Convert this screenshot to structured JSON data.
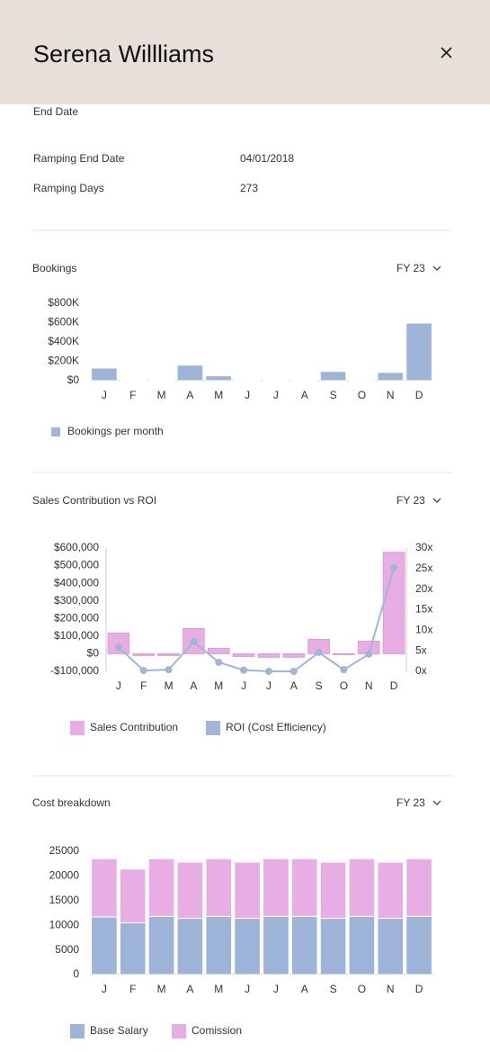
{
  "header": {
    "title": "Serena Willliams"
  },
  "fields": [
    {
      "label": "End Date"
    },
    {
      "label": "Ramping End Date",
      "value": "04/01/2018"
    },
    {
      "label": "Ramping Days",
      "value": "273"
    }
  ],
  "chart_data": [
    {
      "type": "bar",
      "title": "Bookings",
      "period": "FY 23",
      "categories": [
        "J",
        "F",
        "M",
        "A",
        "M",
        "J",
        "J",
        "A",
        "S",
        "O",
        "N",
        "D"
      ],
      "series": [
        {
          "name": "Bookings per month",
          "color": "#9db3d8",
          "values": [
            130000,
            2000,
            8000,
            160000,
            50000,
            3000,
            0,
            0,
            95000,
            10000,
            85000,
            595000
          ]
        }
      ],
      "ylim": [
        0,
        800000
      ],
      "yticks": [
        {
          "value": 0,
          "label": "$0"
        },
        {
          "value": 200000,
          "label": "$200K"
        },
        {
          "value": 400000,
          "label": "$400K"
        },
        {
          "value": 600000,
          "label": "$600K"
        },
        {
          "value": 800000,
          "label": "$800K"
        }
      ]
    },
    {
      "type": "combo",
      "title": "Sales Contribution vs ROI",
      "period": "FY 23",
      "categories": [
        "J",
        "F",
        "M",
        "A",
        "M",
        "J",
        "J",
        "A",
        "S",
        "O",
        "N",
        "D"
      ],
      "series": [
        {
          "name": "Sales Contribution",
          "color": "#e8ade4",
          "mark": "bar",
          "values": [
            117000,
            -10000,
            -10000,
            143000,
            30000,
            -15000,
            -20000,
            -20000,
            82000,
            -5000,
            71000,
            576000
          ]
        },
        {
          "name": "ROI (Cost Efficiency)",
          "color": "#9fb6d6",
          "mark": "line",
          "axis": "y2",
          "values": [
            5.9,
            0.2,
            0.4,
            7.2,
            2.2,
            0.3,
            0,
            0,
            4.6,
            0.4,
            4.2,
            25.2
          ]
        }
      ],
      "ylim": [
        -100000,
        600000
      ],
      "yticks": [
        {
          "value": -100000,
          "label": "-$100,000"
        },
        {
          "value": 0,
          "label": "$0"
        },
        {
          "value": 100000,
          "label": "$100,000"
        },
        {
          "value": 200000,
          "label": "$200,000"
        },
        {
          "value": 300000,
          "label": "$300,000"
        },
        {
          "value": 400000,
          "label": "$400,000"
        },
        {
          "value": 500000,
          "label": "$500,000"
        },
        {
          "value": 600000,
          "label": "$600,000"
        }
      ],
      "y2lim": [
        0,
        30
      ],
      "y2ticks": [
        {
          "value": 0,
          "label": "0x"
        },
        {
          "value": 5,
          "label": "5x"
        },
        {
          "value": 10,
          "label": "10x"
        },
        {
          "value": 15,
          "label": "15x"
        },
        {
          "value": 20,
          "label": "20x"
        },
        {
          "value": 25,
          "label": "25x"
        },
        {
          "value": 30,
          "label": "30x"
        }
      ]
    },
    {
      "type": "stacked_bar",
      "title": "Cost breakdown",
      "period": "FY 23",
      "categories": [
        "J",
        "F",
        "M",
        "A",
        "M",
        "J",
        "J",
        "A",
        "S",
        "O",
        "N",
        "D"
      ],
      "series": [
        {
          "name": "Base Salary",
          "color": "#9db3d8",
          "values": [
            11700,
            10500,
            11800,
            11400,
            11800,
            11400,
            11800,
            11800,
            11400,
            11800,
            11400,
            11800
          ]
        },
        {
          "name": "Comission",
          "color": "#e8ade4",
          "values": [
            11800,
            10900,
            11700,
            11400,
            11700,
            11400,
            11700,
            11700,
            11400,
            11700,
            11400,
            11700
          ]
        }
      ],
      "ylim": [
        0,
        25000
      ],
      "yticks": [
        0,
        5000,
        10000,
        15000,
        20000,
        25000
      ]
    }
  ]
}
